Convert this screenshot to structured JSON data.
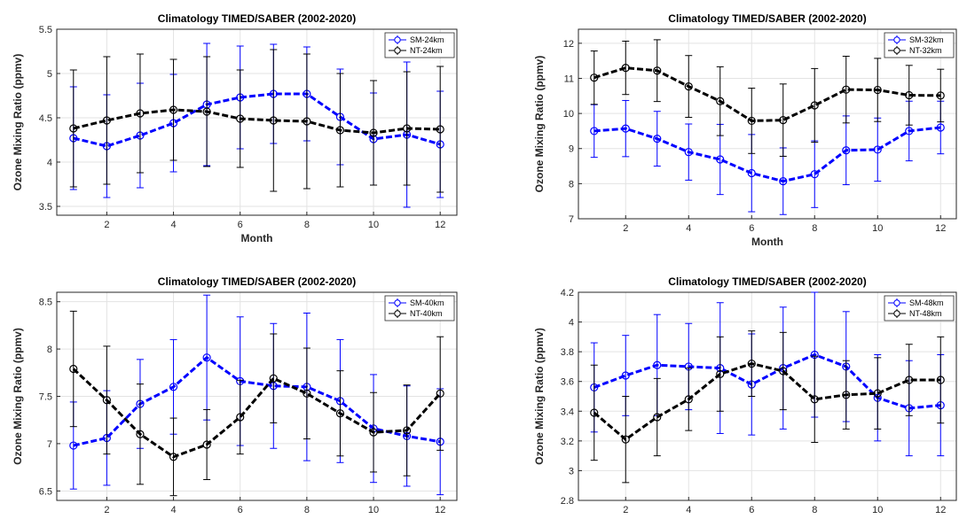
{
  "chart_data": [
    {
      "type": "line",
      "title": "Climatology TIMED/SABER (2002-2020)",
      "xlabel": "Month",
      "ylabel": "Ozone Mixing Ratio (ppmv)",
      "xlim": [
        0.5,
        12.5
      ],
      "ylim": [
        3.4,
        5.5
      ],
      "xticks": [
        2,
        4,
        6,
        8,
        10,
        12
      ],
      "yticks": [
        3.5,
        4,
        4.5,
        5,
        5.5
      ],
      "grid": true,
      "legend_position": "top-right",
      "x": [
        1,
        2,
        3,
        4,
        5,
        6,
        7,
        8,
        9,
        10,
        11,
        12
      ],
      "series": [
        {
          "name": "SM-24km",
          "color": "#0000ff",
          "values": [
            4.27,
            4.18,
            4.3,
            4.44,
            4.65,
            4.73,
            4.77,
            4.77,
            4.51,
            4.26,
            4.31,
            4.2
          ],
          "errors": [
            0.58,
            0.58,
            0.59,
            0.55,
            0.69,
            0.58,
            0.56,
            0.53,
            0.54,
            0.52,
            0.82,
            0.6
          ]
        },
        {
          "name": "NT-24km",
          "color": "#000000",
          "values": [
            4.38,
            4.47,
            4.55,
            4.59,
            4.57,
            4.49,
            4.47,
            4.46,
            4.36,
            4.33,
            4.38,
            4.37
          ],
          "errors": [
            0.66,
            0.72,
            0.67,
            0.57,
            0.62,
            0.55,
            0.8,
            0.76,
            0.64,
            0.59,
            0.64,
            0.71
          ]
        }
      ]
    },
    {
      "type": "line",
      "title": "Climatology TIMED/SABER (2002-2020)",
      "xlabel": "Month",
      "ylabel": "Ozone Mixing Ratio (ppmv)",
      "xlim": [
        0.5,
        12.5
      ],
      "ylim": [
        7,
        12.4
      ],
      "xticks": [
        2,
        4,
        6,
        8,
        10,
        12
      ],
      "yticks": [
        7,
        8,
        9,
        10,
        11,
        12
      ],
      "grid": true,
      "legend_position": "top-right",
      "x": [
        1,
        2,
        3,
        4,
        5,
        6,
        7,
        8,
        9,
        10,
        11,
        12
      ],
      "series": [
        {
          "name": "SM-32km",
          "color": "#0000ff",
          "values": [
            9.5,
            9.57,
            9.28,
            8.9,
            8.69,
            8.3,
            8.07,
            8.27,
            8.95,
            8.97,
            9.5,
            9.6
          ],
          "errors": [
            0.75,
            0.8,
            0.78,
            0.8,
            1.0,
            1.1,
            0.95,
            0.95,
            0.98,
            0.9,
            0.85,
            0.75
          ]
        },
        {
          "name": "NT-32km",
          "color": "#000000",
          "values": [
            11.02,
            11.3,
            11.22,
            10.77,
            10.35,
            9.79,
            9.81,
            10.23,
            10.68,
            10.67,
            10.52,
            10.51
          ],
          "errors": [
            0.76,
            0.76,
            0.88,
            0.88,
            0.98,
            0.93,
            1.03,
            1.05,
            0.95,
            0.9,
            0.85,
            0.75
          ]
        }
      ]
    },
    {
      "type": "line",
      "title": "Climatology TIMED/SABER (2002-2020)",
      "xlabel": "Month",
      "ylabel": "Ozone Mixing Ratio (ppmv)",
      "xlim": [
        0.5,
        12.5
      ],
      "ylim": [
        6.4,
        8.6
      ],
      "xticks": [
        2,
        4,
        6,
        8,
        10,
        12
      ],
      "yticks": [
        6.5,
        7,
        7.5,
        8,
        8.5
      ],
      "grid": true,
      "legend_position": "top-right",
      "x": [
        1,
        2,
        3,
        4,
        5,
        6,
        7,
        8,
        9,
        10,
        11,
        12
      ],
      "series": [
        {
          "name": "SM-40km",
          "color": "#0000ff",
          "values": [
            6.98,
            7.06,
            7.42,
            7.6,
            7.91,
            7.66,
            7.61,
            7.6,
            7.45,
            7.16,
            7.08,
            7.02
          ],
          "errors": [
            0.46,
            0.5,
            0.47,
            0.5,
            0.66,
            0.68,
            0.66,
            0.78,
            0.65,
            0.57,
            0.53,
            0.56
          ]
        },
        {
          "name": "NT-40km",
          "color": "#000000",
          "values": [
            7.79,
            7.46,
            7.1,
            6.86,
            6.99,
            7.28,
            7.69,
            7.53,
            7.32,
            7.12,
            7.14,
            7.53
          ],
          "errors": [
            0.61,
            0.57,
            0.53,
            0.41,
            0.37,
            0.39,
            0.47,
            0.48,
            0.45,
            0.42,
            0.48,
            0.6
          ]
        }
      ]
    },
    {
      "type": "line",
      "title": "Climatology TIMED/SABER (2002-2020)",
      "xlabel": "Month",
      "ylabel": "Ozone Mixing Ratio (ppmv)",
      "xlim": [
        0.5,
        12.5
      ],
      "ylim": [
        2.8,
        4.2
      ],
      "xticks": [
        2,
        4,
        6,
        8,
        10,
        12
      ],
      "yticks": [
        2.8,
        3,
        3.2,
        3.4,
        3.6,
        3.8,
        4,
        4.2
      ],
      "grid": true,
      "legend_position": "top-right",
      "x": [
        1,
        2,
        3,
        4,
        5,
        6,
        7,
        8,
        9,
        10,
        11,
        12
      ],
      "series": [
        {
          "name": "SM-48km",
          "color": "#0000ff",
          "values": [
            3.56,
            3.64,
            3.71,
            3.7,
            3.69,
            3.58,
            3.69,
            3.78,
            3.7,
            3.49,
            3.42,
            3.44
          ],
          "errors": [
            0.3,
            0.27,
            0.34,
            0.29,
            0.44,
            0.34,
            0.41,
            0.42,
            0.37,
            0.29,
            0.32,
            0.34
          ]
        },
        {
          "name": "NT-48km",
          "color": "#000000",
          "values": [
            3.39,
            3.21,
            3.36,
            3.48,
            3.65,
            3.72,
            3.67,
            3.48,
            3.51,
            3.52,
            3.61,
            3.61
          ],
          "errors": [
            0.32,
            0.29,
            0.26,
            0.21,
            0.25,
            0.22,
            0.26,
            0.29,
            0.23,
            0.24,
            0.24,
            0.29
          ]
        }
      ]
    }
  ]
}
